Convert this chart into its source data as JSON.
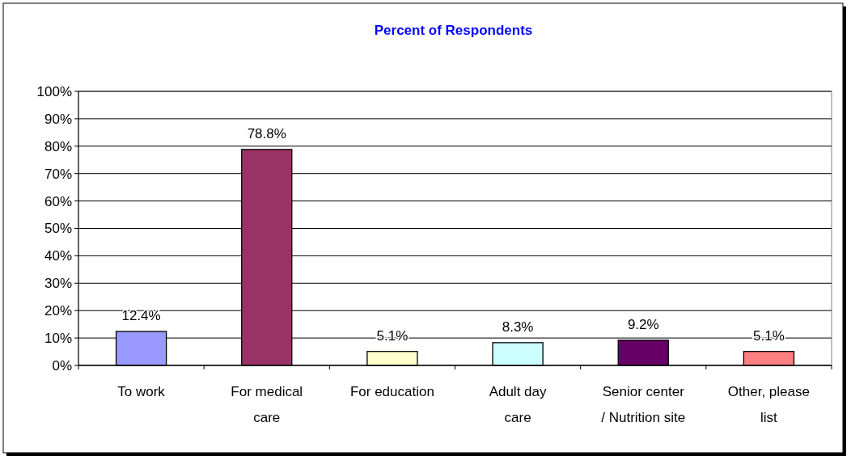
{
  "chart_data": {
    "type": "bar",
    "title": "Percent of Respondents",
    "categories": [
      "To work",
      "For medical care",
      "For education",
      "Adult day care",
      "Senior center / Nutrition site",
      "Other, please list"
    ],
    "values": [
      12.4,
      78.8,
      5.1,
      8.3,
      9.2,
      5.1
    ],
    "colors": [
      "#9999ff",
      "#993366",
      "#ffffcc",
      "#ccffff",
      "#660066",
      "#ff8080"
    ],
    "value_labels": [
      "12.4%",
      "78.8%",
      "5.1%",
      "8.3%",
      "9.2%",
      "5.1%"
    ],
    "ylim": [
      0,
      100
    ],
    "yticks": [
      {
        "value": 0,
        "label": "0%"
      },
      {
        "value": 10,
        "label": "10%"
      },
      {
        "value": 20,
        "label": "20%"
      },
      {
        "value": 30,
        "label": "30%"
      },
      {
        "value": 40,
        "label": "40%"
      },
      {
        "value": 50,
        "label": "50%"
      },
      {
        "value": 60,
        "label": "60%"
      },
      {
        "value": 70,
        "label": "70%"
      },
      {
        "value": 80,
        "label": "80%"
      },
      {
        "value": 90,
        "label": "90%"
      },
      {
        "value": 100,
        "label": "100%"
      }
    ],
    "grid": "y"
  }
}
